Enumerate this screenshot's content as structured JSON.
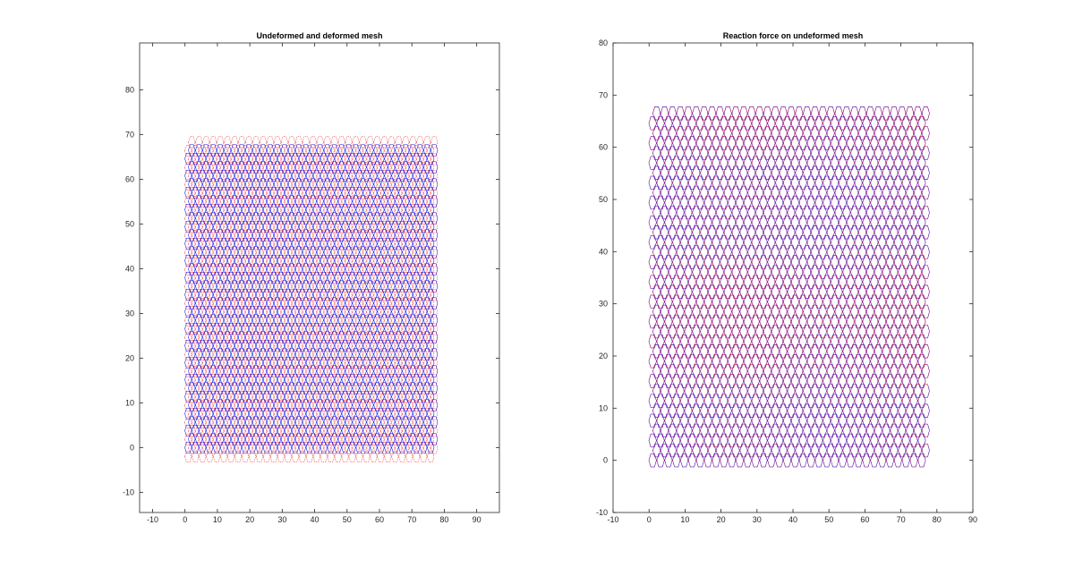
{
  "colors": {
    "mesh_blue": "#1010ee",
    "mesh_red": "#ee1010",
    "frame": "#262626",
    "background": "#ffffff"
  },
  "chart_data": [
    {
      "type": "mesh",
      "title": "Undeformed and deformed mesh",
      "xlabel": "",
      "ylabel": "",
      "xlim": [
        -14,
        97
      ],
      "ylim": [
        -14.5,
        90.5
      ],
      "x_ticks": [
        -10,
        0,
        10,
        20,
        30,
        40,
        50,
        60,
        70,
        80,
        90
      ],
      "y_ticks": [
        -10,
        0,
        10,
        20,
        30,
        40,
        50,
        60,
        70,
        80
      ],
      "grid": false,
      "series": [
        {
          "color": "#1010ee",
          "xrange": [
            1,
            77
          ],
          "yrange": [
            0,
            67
          ]
        },
        {
          "color": "#ee1010",
          "xrange": [
            1,
            77.5
          ],
          "yrange": [
            -2,
            69.5
          ]
        }
      ]
    },
    {
      "type": "mesh",
      "title": "Reaction force on undeformed mesh",
      "xlabel": "",
      "ylabel": "",
      "xlim": [
        -10,
        90
      ],
      "ylim": [
        -10,
        80
      ],
      "x_ticks": [
        -10,
        0,
        10,
        20,
        30,
        40,
        50,
        60,
        70,
        80,
        90
      ],
      "y_ticks": [
        -10,
        0,
        10,
        20,
        30,
        40,
        50,
        60,
        70,
        80
      ],
      "grid": false,
      "series": [
        {
          "color": "#1010ee",
          "xrange": [
            1,
            77
          ],
          "yrange": [
            0,
            67
          ]
        },
        {
          "color": "#ee1010",
          "xrange": [
            1,
            77
          ],
          "yrange": [
            0,
            67
          ]
        }
      ]
    }
  ]
}
